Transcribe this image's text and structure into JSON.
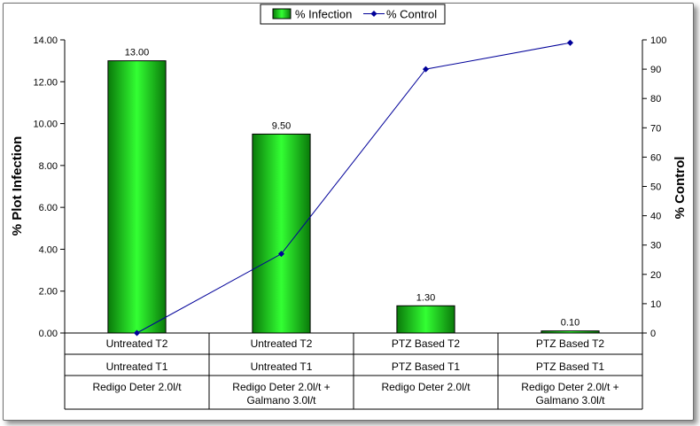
{
  "chart_data": {
    "type": "bar",
    "categories": [
      {
        "lines": [
          "Untreated T2",
          "Untreated T1",
          "Redigo Deter 2.0l/t"
        ]
      },
      {
        "lines": [
          "Untreated T2",
          "Untreated T1",
          "Redigo Deter 2.0l/t +",
          "Galmano 3.0l/t"
        ]
      },
      {
        "lines": [
          "PTZ Based T2",
          "PTZ Based T1",
          "Redigo Deter 2.0l/t"
        ]
      },
      {
        "lines": [
          "PTZ Based T2",
          "PTZ Based T1",
          "Redigo Deter 2.0l/t +",
          "Galmano 3.0l/t"
        ]
      }
    ],
    "series": [
      {
        "name": "% Infection",
        "kind": "bar",
        "axis": "left",
        "values": [
          13.0,
          9.5,
          1.3,
          0.1
        ],
        "labels": [
          "13.00",
          "9.50",
          "1.30",
          "0.10"
        ],
        "color": "#22cc22"
      },
      {
        "name": "% Control",
        "kind": "line",
        "axis": "right",
        "values": [
          0,
          27,
          90,
          99
        ],
        "color": "#000099"
      }
    ],
    "ylabel": "% Plot Infection",
    "y2label": "% Control",
    "ylim": [
      0,
      14
    ],
    "y2lim": [
      0,
      100
    ],
    "yticks": [
      "0.00",
      "2.00",
      "4.00",
      "6.00",
      "8.00",
      "10.00",
      "12.00",
      "14.00"
    ],
    "y2ticks": [
      "0",
      "10",
      "20",
      "30",
      "40",
      "50",
      "60",
      "70",
      "80",
      "90",
      "100"
    ],
    "legend_position": "top-center",
    "grid": false
  }
}
